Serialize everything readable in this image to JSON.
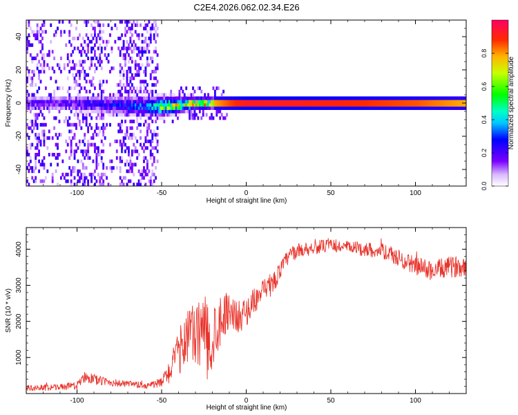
{
  "title": "C2E4.2026.062.02.34.E26",
  "chart_data": [
    {
      "type": "heatmap",
      "xlabel": "Height of straight line (km)",
      "ylabel": "Frequency (Hz)",
      "xlim": [
        -130,
        130
      ],
      "ylim": [
        -50,
        50
      ],
      "xticks": [
        -100,
        -50,
        0,
        50,
        100
      ],
      "xtick_labels": [
        "-100",
        "-50",
        "0",
        "50",
        "100"
      ],
      "yticks": [
        -40,
        -20,
        0,
        20,
        40
      ],
      "ytick_labels": [
        "-40",
        "-20",
        "0",
        "20",
        "40"
      ],
      "colorbar": {
        "label": "Normalized spectral amplitude",
        "range": [
          0,
          1
        ],
        "ticks": [
          0.0,
          0.2,
          0.4,
          0.6,
          0.8
        ],
        "tick_labels": [
          "0.0",
          "0.2",
          "0.4",
          "0.6",
          "0.8"
        ]
      },
      "ridge": {
        "x": [
          -130,
          -100,
          -80,
          -60,
          -50,
          -40,
          -30,
          -20,
          -10,
          0,
          50,
          100,
          130
        ],
        "center_freq": [
          0,
          0,
          -1,
          -2,
          -2,
          -1,
          0,
          0,
          0,
          0,
          0,
          0,
          0
        ],
        "half_width": [
          3,
          3,
          4,
          4,
          4,
          3,
          2.5,
          2,
          1.8,
          1.6,
          1.6,
          1.8,
          2.2
        ],
        "amplitude": [
          0.15,
          0.18,
          0.22,
          0.3,
          0.55,
          0.62,
          0.7,
          0.78,
          0.86,
          0.92,
          0.9,
          0.85,
          0.78
        ]
      },
      "noise_region": {
        "x_range": [
          -130,
          -52
        ],
        "freq_range": [
          -50,
          50
        ],
        "amplitude": [
          0.05,
          0.25
        ]
      }
    },
    {
      "type": "line",
      "xlabel": "Height of straight line (km)",
      "ylabel": "SNR (10 * v/v)",
      "xlim": [
        -130,
        130
      ],
      "ylim": [
        0,
        4600
      ],
      "xticks": [
        -100,
        -50,
        0,
        50,
        100
      ],
      "xtick_labels": [
        "-100",
        "-50",
        "0",
        "50",
        "100"
      ],
      "yticks": [
        1000,
        2000,
        3000,
        4000
      ],
      "ytick_labels": [
        "1000",
        "2000",
        "3000",
        "4000"
      ],
      "color": "#e8332a",
      "series": [
        {
          "name": "SNR",
          "x": [
            -130,
            -110,
            -100,
            -95,
            -90,
            -75,
            -60,
            -55,
            -50,
            -45,
            -40,
            -35,
            -30,
            -25,
            -22,
            -20,
            -15,
            -10,
            -5,
            0,
            5,
            10,
            15,
            20,
            25,
            30,
            40,
            50,
            60,
            70,
            80,
            90,
            100,
            110,
            120,
            130
          ],
          "y": [
            150,
            180,
            220,
            500,
            380,
            280,
            220,
            250,
            300,
            650,
            1100,
            1700,
            1500,
            1900,
            1200,
            1600,
            2100,
            2350,
            2100,
            2250,
            2600,
            2800,
            3000,
            3400,
            3800,
            3950,
            4050,
            4100,
            4050,
            4000,
            3950,
            3750,
            3550,
            3400,
            3500,
            3550
          ],
          "noise_amplitude": [
            80,
            90,
            100,
            180,
            140,
            100,
            90,
            100,
            150,
            350,
            600,
            900,
            900,
            1000,
            1200,
            1000,
            700,
            500,
            450,
            400,
            350,
            350,
            300,
            250,
            220,
            200,
            190,
            180,
            180,
            200,
            210,
            240,
            260,
            280,
            290,
            290
          ]
        }
      ]
    }
  ]
}
